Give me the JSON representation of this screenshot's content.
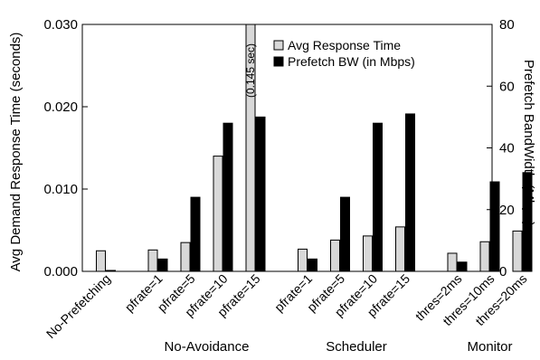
{
  "chart_data": {
    "type": "bar",
    "ylabel": "Avg Demand Response Time (seconds)",
    "y2label": "Prefetch BandWidth (Mbps)",
    "ylim": [
      0,
      0.03
    ],
    "y2lim": [
      0,
      80
    ],
    "yticks": [
      "0.000",
      "0.010",
      "0.020",
      "0.030"
    ],
    "y2ticks": [
      "0",
      "20",
      "40",
      "60",
      "80"
    ],
    "categories": [
      "No-Prefetching",
      "pfrate=1",
      "pfrate=5",
      "pfrate=10",
      "pfrate=15",
      "pfrate=1",
      "pfrate=5",
      "pfrate=10",
      "pfrate=15",
      "thres=2ms",
      "thres=10ms",
      "thres=20ms"
    ],
    "groups": [
      {
        "label": "No-Avoidance",
        "from": 1,
        "to": 4
      },
      {
        "label": "Scheduler",
        "from": 5,
        "to": 8
      },
      {
        "label": "Monitor",
        "from": 9,
        "to": 11
      }
    ],
    "series": [
      {
        "name": "Avg Response Time",
        "axis": "left",
        "color": "#d8d8d8",
        "values": [
          0.0025,
          0.0026,
          0.0035,
          0.014,
          0.03,
          0.0027,
          0.0038,
          0.0043,
          0.0054,
          0.0022,
          0.0036,
          0.0049
        ]
      },
      {
        "name": "Prefetch BW (in Mbps)",
        "axis": "right",
        "color": "#000000",
        "values": [
          0.3,
          4,
          24,
          48,
          50,
          4,
          24,
          48,
          51,
          3,
          29,
          32
        ]
      }
    ],
    "annotations": [
      {
        "text": "(0.145 sec)",
        "category_index": 4,
        "series_index": 0
      }
    ],
    "legend_position": "top-right"
  }
}
